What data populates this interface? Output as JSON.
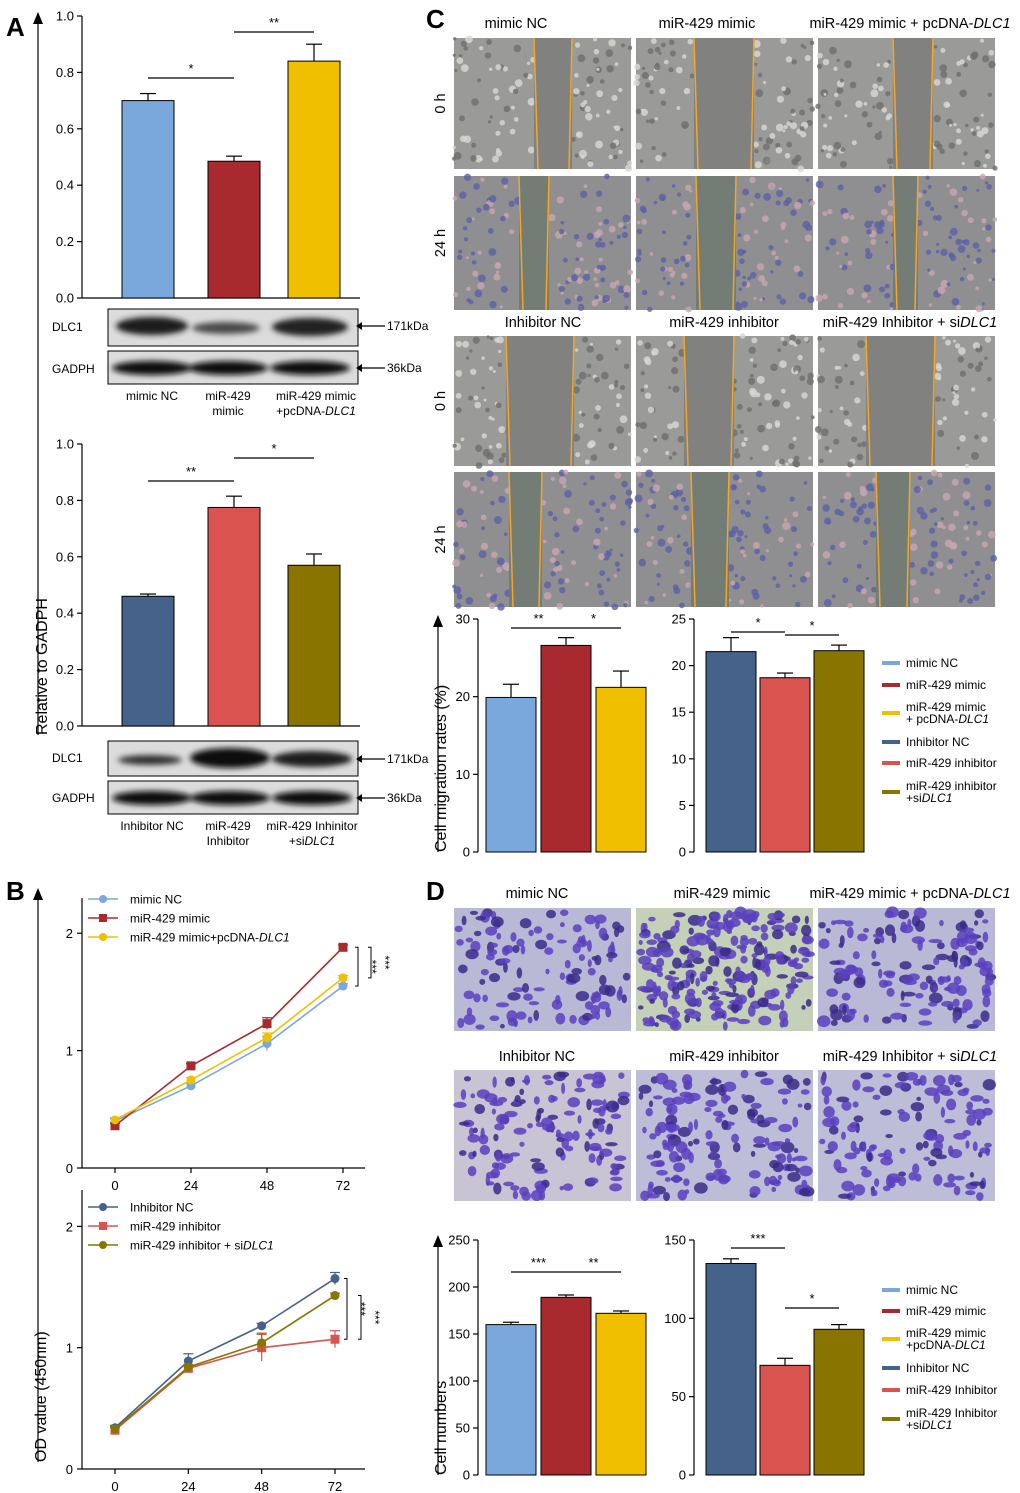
{
  "panel_labels": [
    "A",
    "B",
    "C",
    "D"
  ],
  "colors": {
    "mimic_nc": "#7aa7dc",
    "mir429_mimic": "#a82a2e",
    "mimic_pcdna": "#f0c000",
    "inhibitor_nc": "#45628a",
    "mir429_inhibitor": "#d9534f",
    "inhibitor_sidlc1": "#8a7400",
    "wound_line": "#f5a623",
    "cell_stain": "#5a3fc0"
  },
  "panelA": {
    "ylabel": "Relative to GADPH",
    "blot_labels": {
      "dlc1": "DLC1",
      "gadph": "GADPH",
      "kda_dlc1": "171kDa",
      "kda_gadph": "36kDa"
    },
    "top_groups": [
      [
        "mimic NC"
      ],
      [
        "miR-429",
        "mimic"
      ],
      [
        "miR-429 mimic",
        "+pcDNA-DLC1"
      ]
    ],
    "bottom_groups": [
      [
        "Inhibitor NC"
      ],
      [
        "miR-429",
        "Inhibitor"
      ],
      [
        "miR-429 Inhinitor",
        "+siDLC1"
      ]
    ]
  },
  "panelB": {
    "ylabel": "OD value (450nm)",
    "legend_top": [
      "mimic NC",
      "miR-429 mimic",
      "miR-429 mimic+pcDNA-DLC1"
    ],
    "legend_bottom": [
      "Inhibitor NC",
      "miR-429 inhibitor",
      "miR-429 inhibitor + siDLC1"
    ]
  },
  "panelC": {
    "ylabel": "Cell migration rates (%)",
    "top_headers": [
      "mimic NC",
      "miR-429 mimic",
      "miR-429 mimic + pcDNA-DLC1"
    ],
    "bottom_headers": [
      "Inhibitor NC",
      "miR-429 inhibitor",
      "miR-429 Inhibitor + siDLC1"
    ],
    "row_labels": [
      "0 h",
      "24 h",
      "0 h",
      "24 h"
    ],
    "legend": [
      "mimic NC",
      "miR-429 mimic",
      "miR-429 mimic\n+ pcDNA-DLC1",
      "Inhibitor NC",
      "miR-429 inhibitor",
      "miR-429 inhibitor\n+siDLC1"
    ]
  },
  "panelD": {
    "ylabel": "Cell numbers",
    "top_headers": [
      "mimic NC",
      "miR-429 mimic",
      "miR-429 mimic + pcDNA-DLC1"
    ],
    "bottom_headers": [
      "Inhibitor NC",
      "miR-429 inhibitor",
      "miR-429 Inhibitor + siDLC1"
    ],
    "legend": [
      "mimic NC",
      "miR-429 mimic",
      "miR-429 mimic\n+pcDNA-DLC1",
      "Inhibitor NC",
      "miR-429 Inhibitor",
      "miR-429 Inhibitor\n+siDLC1"
    ]
  },
  "chart_data": [
    {
      "id": "A_top",
      "type": "bar",
      "categories": [
        "mimic NC",
        "miR-429 mimic",
        "miR-429 mimic +pcDNA-DLC1"
      ],
      "values": [
        0.7,
        0.485,
        0.84
      ],
      "errors": [
        0.025,
        0.018,
        0.06
      ],
      "ylim": [
        0,
        1.0
      ],
      "yticks": [
        0.0,
        0.2,
        0.4,
        0.6,
        0.8,
        1.0
      ],
      "significance": [
        {
          "from": 0,
          "to": 1,
          "label": "*"
        },
        {
          "from": 1,
          "to": 2,
          "label": "**"
        }
      ]
    },
    {
      "id": "A_bottom",
      "type": "bar",
      "categories": [
        "Inhibitor NC",
        "miR-429 Inhibitor",
        "miR-429 Inhinitor +siDLC1"
      ],
      "values": [
        0.46,
        0.775,
        0.57
      ],
      "errors": [
        0.008,
        0.04,
        0.04
      ],
      "ylim": [
        0,
        1.0
      ],
      "yticks": [
        0.0,
        0.2,
        0.4,
        0.6,
        0.8,
        1.0
      ],
      "significance": [
        {
          "from": 0,
          "to": 1,
          "label": "**"
        },
        {
          "from": 1,
          "to": 2,
          "label": "*"
        }
      ]
    },
    {
      "id": "B_top",
      "type": "line",
      "x": [
        0,
        24,
        48,
        72
      ],
      "ylim": [
        0,
        2.3
      ],
      "yticks": [
        0,
        1,
        2
      ],
      "series": [
        {
          "name": "mimic NC",
          "values": [
            0.4,
            0.7,
            1.06,
            1.55
          ],
          "errors": [
            0.02,
            0.02,
            0.06,
            0.02
          ]
        },
        {
          "name": "miR-429 mimic",
          "values": [
            0.36,
            0.87,
            1.23,
            1.88
          ],
          "errors": [
            0.02,
            0.02,
            0.05,
            0.02
          ]
        },
        {
          "name": "miR-429 mimic+pcDNA-DLC1",
          "values": [
            0.41,
            0.75,
            1.11,
            1.62
          ],
          "errors": [
            0.02,
            0.02,
            0.04,
            0.02
          ]
        }
      ],
      "significance": [
        "***",
        "***"
      ]
    },
    {
      "id": "B_bottom",
      "type": "line",
      "x": [
        0,
        24,
        48,
        72
      ],
      "ylim": [
        0,
        2.3
      ],
      "yticks": [
        0,
        1,
        2
      ],
      "series": [
        {
          "name": "Inhibitor NC",
          "values": [
            0.34,
            0.89,
            1.18,
            1.57
          ],
          "errors": [
            0.02,
            0.06,
            0.02,
            0.05
          ]
        },
        {
          "name": "miR-429 inhibitor",
          "values": [
            0.32,
            0.83,
            1.0,
            1.07
          ],
          "errors": [
            0.02,
            0.02,
            0.11,
            0.07
          ]
        },
        {
          "name": "miR-429 inhibitor + siDLC1",
          "values": [
            0.33,
            0.84,
            1.04,
            1.43
          ],
          "errors": [
            0.02,
            0.02,
            0.08,
            0.02
          ]
        }
      ],
      "significance": [
        "***",
        "***"
      ]
    },
    {
      "id": "C_left",
      "type": "bar",
      "categories": [
        "mimic NC",
        "miR-429 mimic",
        "miR-429 mimic + pcDNA-DLC1"
      ],
      "values": [
        19.9,
        26.6,
        21.2
      ],
      "errors": [
        1.7,
        1.0,
        2.1
      ],
      "ylim": [
        0,
        30
      ],
      "yticks": [
        0,
        10,
        20,
        30
      ],
      "significance": [
        {
          "from": 0,
          "to": 1,
          "label": "**"
        },
        {
          "from": 1,
          "to": 2,
          "label": "*"
        }
      ]
    },
    {
      "id": "C_right",
      "type": "bar",
      "categories": [
        "Inhibitor NC",
        "miR-429 inhibitor",
        "miR-429 inhibitor +siDLC1"
      ],
      "values": [
        21.5,
        18.7,
        21.6
      ],
      "errors": [
        1.5,
        0.5,
        0.6
      ],
      "ylim": [
        0,
        25
      ],
      "yticks": [
        0,
        5,
        10,
        15,
        20,
        25
      ],
      "significance": [
        {
          "from": 0,
          "to": 1,
          "label": "*"
        },
        {
          "from": 1,
          "to": 2,
          "label": "*"
        }
      ]
    },
    {
      "id": "D_left",
      "type": "bar",
      "categories": [
        "mimic NC",
        "miR-429 mimic",
        "miR-429 mimic +pcDNA-DLC1"
      ],
      "values": [
        160,
        189,
        172
      ],
      "errors": [
        2.5,
        2.5,
        2.5
      ],
      "ylim": [
        0,
        250
      ],
      "yticks": [
        0,
        50,
        100,
        150,
        200,
        250
      ],
      "significance": [
        {
          "from": 0,
          "to": 1,
          "label": "***"
        },
        {
          "from": 1,
          "to": 2,
          "label": "**"
        }
      ]
    },
    {
      "id": "D_right",
      "type": "bar",
      "categories": [
        "Inhibitor NC",
        "miR-429 Inhibitor",
        "miR-429 Inhibitor +siDLC1"
      ],
      "values": [
        135,
        70,
        93
      ],
      "errors": [
        3,
        4.5,
        3
      ],
      "ylim": [
        0,
        150
      ],
      "yticks": [
        0,
        50,
        100,
        150
      ],
      "significance": [
        {
          "from": 0,
          "to": 1,
          "label": "***"
        },
        {
          "from": 1,
          "to": 2,
          "label": "*"
        }
      ]
    }
  ]
}
